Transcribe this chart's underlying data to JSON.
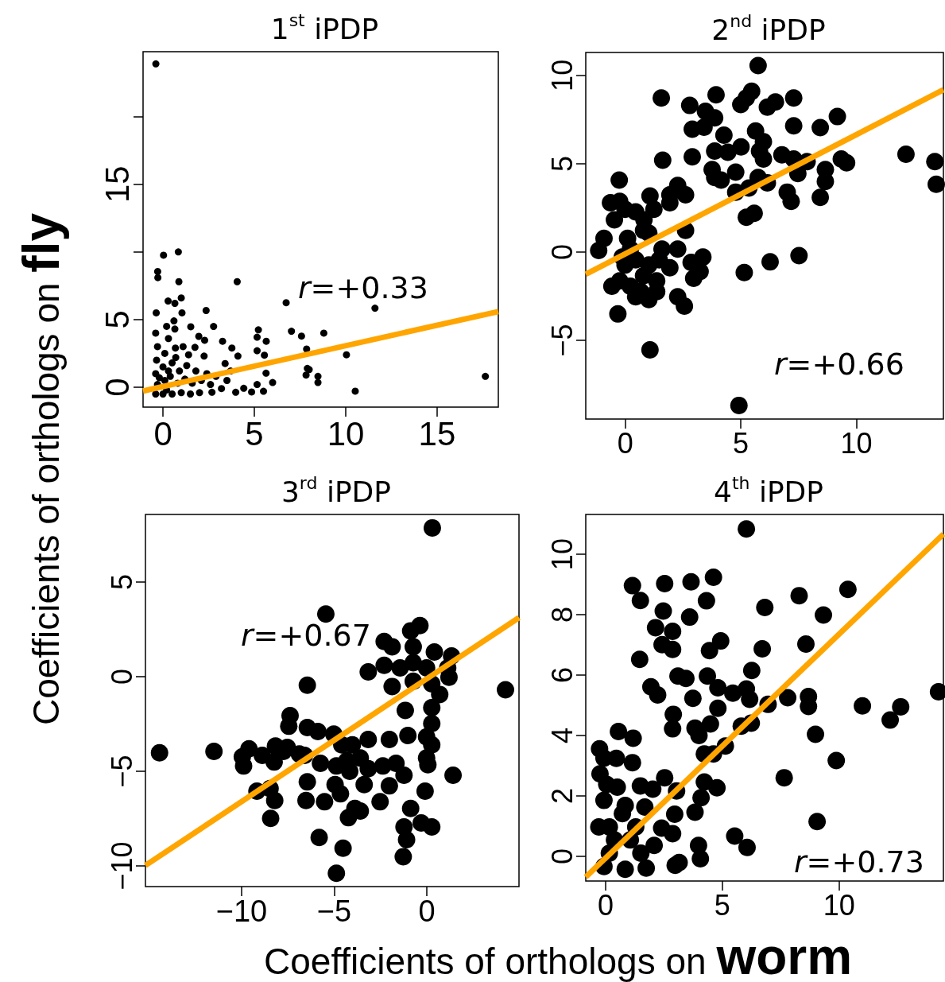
{
  "chart_data": [
    {
      "type": "scatter",
      "title": "1$^{st}$ iPDP",
      "ylabel": "Coefficients of orthologs on fly",
      "xlim": [
        -1.09,
        18.35
      ],
      "ylim": [
        -1.47,
        24.8
      ],
      "xticks": [
        0,
        5,
        10,
        15
      ],
      "yticks": [
        0,
        5,
        {
          "value": 10,
          "label": null
        },
        15,
        {
          "value": 20,
          "label": null
        }
      ],
      "annotations": [
        "r=+0.33"
      ],
      "series": [
        {
          "type": "scatter",
          "marker": "circle",
          "color": "#000000",
          "x": [
            -0.39,
            0.03,
            0.84,
            -0.29,
            -0.28,
            0.87,
            4.06,
            1.0,
            6.74,
            11.6,
            0.28,
            0.65,
            1.04,
            2.36,
            -0.37,
            1.52,
            2.77,
            5.22,
            7.03,
            7.58,
            8.8,
            5.15,
            5.65,
            1.96,
            2.28,
            3.26,
            3.77,
            4.1,
            5.15,
            5.55,
            7.86,
            10.04,
            3.4,
            7.9,
            8.0,
            8.48,
            8.48,
            7.83,
            5.64,
            6.0,
            17.64,
            10.52,
            5.5,
            5.15,
            4.85,
            4.42,
            3.98,
            2.68,
            2.25,
            1.75,
            1.4,
            0.3,
            0.6,
            0.65,
            0.68,
            -0.4,
            -0.3,
            -0.4,
            -0.35,
            -0.3,
            -0.4,
            0.0,
            0.1,
            0.0,
            0.1,
            0.2,
            0.4,
            0.5,
            0.5,
            0.8,
            0.9,
            1.0,
            1.2,
            1.3,
            1.5,
            1.6,
            1.8,
            2.0,
            2.1,
            2.4,
            2.6,
            2.9,
            3.2,
            3.5,
            3.7,
            -0.2,
            0.3,
            0.7,
            1.1,
            0.2
          ],
          "values": [
            23.9,
            9.76,
            10.0,
            8.55,
            8.1,
            7.8,
            7.8,
            6.6,
            6.25,
            5.84,
            6.37,
            6.2,
            5.5,
            5.67,
            5.5,
            4.47,
            4.49,
            4.24,
            4.14,
            3.78,
            4.0,
            3.7,
            3.4,
            3.76,
            3.47,
            3.4,
            2.9,
            2.3,
            2.7,
            2.37,
            2.82,
            2.4,
            1.75,
            1.39,
            1.3,
            0.8,
            0.35,
            0.9,
            1.04,
            0.35,
            0.8,
            -0.29,
            -0.3,
            0.2,
            -0.35,
            -0.08,
            -0.37,
            -0.37,
            2.3,
            2.95,
            2.4,
            3.6,
            4.9,
            4.3,
            2.9,
            -0.5,
            0.2,
            1.0,
            2.0,
            3.0,
            4.0,
            -0.5,
            0.5,
            1.5,
            2.5,
            -0.2,
            0.8,
            1.8,
            -0.5,
            0.3,
            1.2,
            -0.4,
            0.6,
            1.6,
            -0.5,
            0.3,
            1.2,
            -0.4,
            0.5,
            1.0,
            0.2,
            0.8,
            -0.1,
            0.5,
            1.2,
            0.7,
            1.2,
            2.2,
            3.0,
            4.5
          ]
        },
        {
          "type": "line",
          "color": "#ffa500",
          "x": [
            -1.09,
            18.35
          ],
          "values": [
            -0.28,
            5.59
          ]
        }
      ]
    },
    {
      "type": "scatter",
      "title": "2$^{nd}$ iPDP",
      "xlim": [
        -1.71,
        13.77
      ],
      "ylim": [
        -9.46,
        11.3
      ],
      "xticks": [
        0,
        5,
        10
      ],
      "yticks": [
        -5,
        0,
        5,
        10
      ],
      "annotations": [
        "r=+0.66"
      ],
      "series": [
        {
          "type": "scatter",
          "marker": "circle",
          "color": "#000000",
          "x": [
            5.75,
            1.56,
            3.93,
            2.79,
            5.47,
            5.24,
            5.0,
            6.15,
            6.5,
            7.29,
            3.47,
            3.87,
            2.9,
            3.41,
            4.27,
            5.64,
            5.98,
            7.29,
            8.44,
            9.18,
            5.01,
            3.87,
            4.44,
            2.9,
            1.62,
            5.81,
            5.98,
            6.78,
            7.29,
            7.87,
            9.35,
            9.58,
            12.15,
            13.4,
            13.46,
            8.66,
            8.66,
            8.44,
            7.47,
            7.01,
            7.18,
            5.75,
            6.15,
            5.35,
            4.78,
            4.78,
            3.87,
            4.15,
            3.76,
            5.24,
            5.58,
            2.27,
            2.61,
            1.93,
            1.93,
            1.07,
            1.24,
            -0.26,
            -0.24,
            -0.64,
            -0.01,
            -0.47,
            0.81,
            2.61,
            -0.92,
            -1.15,
            1.02,
            0.22,
            1.59,
            2.27,
            3.36,
            2.85,
            3.24,
            2.96,
            1.93,
            1.36,
            0.79,
            -0.01,
            -0.58,
            -0.24,
            0.45,
            1.02,
            -0.32,
            2.27,
            2.56,
            5.15,
            6.27,
            7.52,
            1.07,
            4.92,
            0.45,
            1.02,
            0.22,
            1.47,
            -0.13,
            0.67,
            1.36,
            0.1,
            0.79,
            0.45
          ],
          "values": [
            10.56,
            8.72,
            8.9,
            8.3,
            9.1,
            8.72,
            8.35,
            8.2,
            8.5,
            8.72,
            7.97,
            7.6,
            6.95,
            7.07,
            6.62,
            6.85,
            6.25,
            7.15,
            7.04,
            7.67,
            5.95,
            5.72,
            5.65,
            5.39,
            5.2,
            5.72,
            5.27,
            5.5,
            5.27,
            5.12,
            5.27,
            5.05,
            5.54,
            5.12,
            3.84,
            4.67,
            3.99,
            3.09,
            4.44,
            3.39,
            2.87,
            4.22,
            3.92,
            3.62,
            3.39,
            4.52,
            4.22,
            4.07,
            4.67,
            1.97,
            2.19,
            3.77,
            3.24,
            3.24,
            2.79,
            3.17,
            2.42,
            4.07,
            2.87,
            2.79,
            2.42,
            1.82,
            1.82,
            1.22,
            0.77,
            0.09,
            1.07,
            0.17,
            0.17,
            0.17,
            -0.29,
            -0.59,
            -1.11,
            -1.49,
            -0.89,
            -1.64,
            -1.34,
            -0.74,
            -1.94,
            -1.64,
            -2.54,
            -2.69,
            -3.51,
            -2.54,
            -3.06,
            -1.16,
            -0.56,
            -0.21,
            -5.54,
            -8.69,
            -0.44,
            -0.74,
            -1.94,
            -0.44,
            -0.29,
            -2.24,
            -2.24,
            0.77,
            1.22,
            2.27
          ]
        },
        {
          "type": "line",
          "color": "#ffa500",
          "x": [
            -1.71,
            13.77
          ],
          "values": [
            -1.26,
            9.19
          ]
        }
      ]
    },
    {
      "type": "scatter",
      "title": "3$^{rd}$ iPDP",
      "xlabel": "Coefficients of orthologs on worm",
      "xlim": [
        -15.19,
        4.98
      ],
      "ylim": [
        -11.09,
        8.57
      ],
      "xticks": [
        -10,
        -5,
        0
      ],
      "yticks": [
        -10,
        -5,
        0,
        5
      ],
      "annotations": [
        "r=+0.67"
      ],
      "series": [
        {
          "type": "scatter",
          "marker": "circle",
          "color": "#000000",
          "x": [
            0.3,
            -5.45,
            -14.43,
            -11.49,
            4.25,
            -6.45,
            -0.37,
            -0.87,
            -2.3,
            -1.87,
            -0.73,
            0.41,
            1.34,
            -2.3,
            -3.16,
            -1.44,
            -0.73,
            -0.01,
            1.13,
            1.2,
            -1.87,
            -0.73,
            0.27,
            0.7,
            -1.16,
            0.27,
            0.27,
            -0.01,
            0.27,
            -1.02,
            -2.02,
            -3.16,
            -0.01,
            0.06,
            1.42,
            -0.09,
            -0.87,
            -0.3,
            0.27,
            -1.23,
            -1.09,
            -1.27,
            -2.02,
            -1.23,
            -1.66,
            -2.37,
            -2.52,
            -3.38,
            -3.16,
            -4.02,
            -3.59,
            -4.31,
            -5.02,
            -4.59,
            -5.88,
            -6.45,
            -7.38,
            -7.45,
            -6.6,
            -5.74,
            -4.88,
            -4.16,
            -6.45,
            -4.95,
            -6.52,
            -5.52,
            -4.66,
            -3.88,
            -3.59,
            -4.23,
            -5.81,
            -4.52,
            -4.88,
            -8.43,
            -8.21,
            -9.17,
            -8.46,
            -9.89,
            -9.96,
            -9.6,
            -8.88,
            -8.17,
            -7.74,
            -7.53,
            -8.24,
            -6.88
          ],
          "values": [
            7.86,
            3.31,
            -4.02,
            -3.95,
            -0.69,
            -0.45,
            2.7,
            2.42,
            1.86,
            1.58,
            1.58,
            1.3,
            1.09,
            0.6,
            0.25,
            0.46,
            0.74,
            0.46,
            0.46,
            -0.03,
            -0.52,
            -0.24,
            -0.38,
            -0.94,
            -1.78,
            -1.64,
            -2.48,
            -3.18,
            -3.6,
            -3.11,
            -3.32,
            -3.32,
            -4.3,
            -4.65,
            -5.21,
            -6.05,
            -6.96,
            -7.73,
            -7.94,
            -7.94,
            -8.61,
            -9.51,
            -5.77,
            -5.21,
            -4.58,
            -4.72,
            -6.61,
            -5.7,
            -4.86,
            -3.6,
            -4.3,
            -4.44,
            -3.04,
            -3.6,
            -2.9,
            -2.69,
            -2.06,
            -2.62,
            -4.16,
            -4.58,
            -4.72,
            -5.0,
            -5.56,
            -5.7,
            -6.54,
            -6.61,
            -6.19,
            -6.96,
            -7.1,
            -7.45,
            -8.5,
            -9.06,
            -10.39,
            -7.49,
            -6.54,
            -6.05,
            -5.91,
            -4.72,
            -4.23,
            -3.81,
            -4.16,
            -3.67,
            -3.95,
            -3.74,
            -4.51,
            -4.09
          ]
        },
        {
          "type": "line",
          "color": "#ffa500",
          "x": [
            -15.19,
            4.98
          ],
          "values": [
            -9.97,
            3.12
          ]
        }
      ]
    },
    {
      "type": "scatter",
      "title": "4$^{th}$ iPDP",
      "xlim": [
        -0.85,
        14.47
      ],
      "ylim": [
        -0.82,
        11.32
      ],
      "xticks": [
        0,
        5,
        10
      ],
      "yticks": [
        0,
        2,
        4,
        6,
        8,
        10
      ],
      "annotations": [
        "r=+0.73"
      ],
      "series": [
        {
          "type": "scatter",
          "marker": "circle",
          "color": "#000000",
          "x": [
            6.03,
            1.15,
            1.49,
            2.53,
            3.66,
            4.62,
            4.32,
            2.47,
            3.6,
            2.14,
            2.87,
            2.42,
            2.87,
            4.45,
            4.93,
            6.82,
            8.29,
            10.38,
            9.33,
            6.71,
            8.58,
            6.26,
            1.46,
            3.1,
            3.44,
            4.36,
            1.94,
            2.23,
            3.74,
            4.81,
            5.45,
            6.03,
            6.17,
            6.96,
            7.8,
            8.69,
            8.69,
            11.0,
            12.64,
            12.19,
            14.26,
            4.81,
            2.9,
            2.87,
            3.83,
            4.0,
            4.49,
            5.81,
            6.24,
            8.99,
            5.13,
            4.23,
            4.62,
            9.88,
            7.65,
            0.55,
            1.18,
            0.46,
            1.15,
            -0.26,
            2.53,
            1.49,
            2.02,
            3.04,
            4.23,
            4.77,
            4.09,
            3.83,
            2.96,
            1.68,
            2.87,
            2.4,
            9.06,
            5.53,
            6.06,
            3.98,
            4.06,
            3.15,
            2.98,
            2.08,
            1.74,
            0.84,
            -0.24,
            -0.07,
            0.16,
            0.5,
            0.72,
            0.16,
            1.06,
            1.29,
            1.51,
            -0.07,
            0.38,
            0.84,
            -0.29,
            -0.07,
            0.05
          ],
          "values": [
            10.84,
            8.96,
            8.47,
            9.03,
            9.09,
            9.24,
            8.46,
            8.12,
            7.92,
            7.57,
            7.45,
            7.01,
            6.85,
            6.81,
            7.13,
            8.24,
            8.63,
            8.84,
            7.99,
            6.87,
            7.03,
            6.15,
            6.52,
            5.97,
            5.89,
            5.97,
            5.61,
            5.34,
            5.23,
            5.58,
            5.4,
            5.54,
            5.2,
            5.03,
            5.25,
            5.29,
            4.96,
            4.98,
            4.95,
            4.51,
            5.45,
            4.9,
            4.7,
            4.22,
            4.24,
            4.0,
            4.38,
            4.31,
            4.41,
            4.04,
            3.65,
            3.39,
            3.39,
            3.17,
            2.6,
            4.13,
            3.91,
            3.24,
            3.1,
            3.56,
            2.6,
            2.33,
            2.22,
            2.16,
            2.46,
            2.27,
            1.94,
            1.46,
            1.39,
            1.63,
            0.75,
            0.93,
            1.15,
            0.67,
            0.29,
            0.36,
            -0.08,
            -0.21,
            -0.3,
            0.36,
            -0.39,
            -0.43,
            2.73,
            1.85,
            0.97,
            2.29,
            1.41,
            0.1,
            0.54,
            0.97,
            0.1,
            -0.34,
            0.54,
            1.68,
            0.97,
            3.25,
            2.38
          ]
        },
        {
          "type": "line",
          "color": "#ffa500",
          "x": [
            -0.85,
            14.47
          ],
          "values": [
            -0.69,
            10.67
          ]
        }
      ]
    }
  ]
}
